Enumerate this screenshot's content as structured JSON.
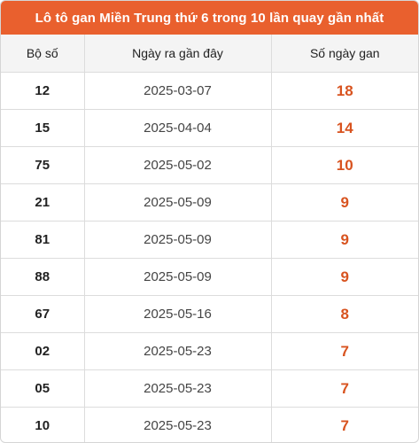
{
  "title": "Lô tô gan Miền Trung thứ 6 trong 10 lần quay gần nhất",
  "headers": {
    "number": "Bộ số",
    "last_date": "Ngày ra gần đây",
    "gan_days": "Số ngày gan"
  },
  "rows": [
    {
      "number": "12",
      "last_date": "2025-03-07",
      "gan_days": "18"
    },
    {
      "number": "15",
      "last_date": "2025-04-04",
      "gan_days": "14"
    },
    {
      "number": "75",
      "last_date": "2025-05-02",
      "gan_days": "10"
    },
    {
      "number": "21",
      "last_date": "2025-05-09",
      "gan_days": "9"
    },
    {
      "number": "81",
      "last_date": "2025-05-09",
      "gan_days": "9"
    },
    {
      "number": "88",
      "last_date": "2025-05-09",
      "gan_days": "9"
    },
    {
      "number": "67",
      "last_date": "2025-05-16",
      "gan_days": "8"
    },
    {
      "number": "02",
      "last_date": "2025-05-23",
      "gan_days": "7"
    },
    {
      "number": "05",
      "last_date": "2025-05-23",
      "gan_days": "7"
    },
    {
      "number": "10",
      "last_date": "2025-05-23",
      "gan_days": "7"
    }
  ],
  "colors": {
    "title_bg": "#e9602e",
    "accent_value": "#d8531f"
  }
}
